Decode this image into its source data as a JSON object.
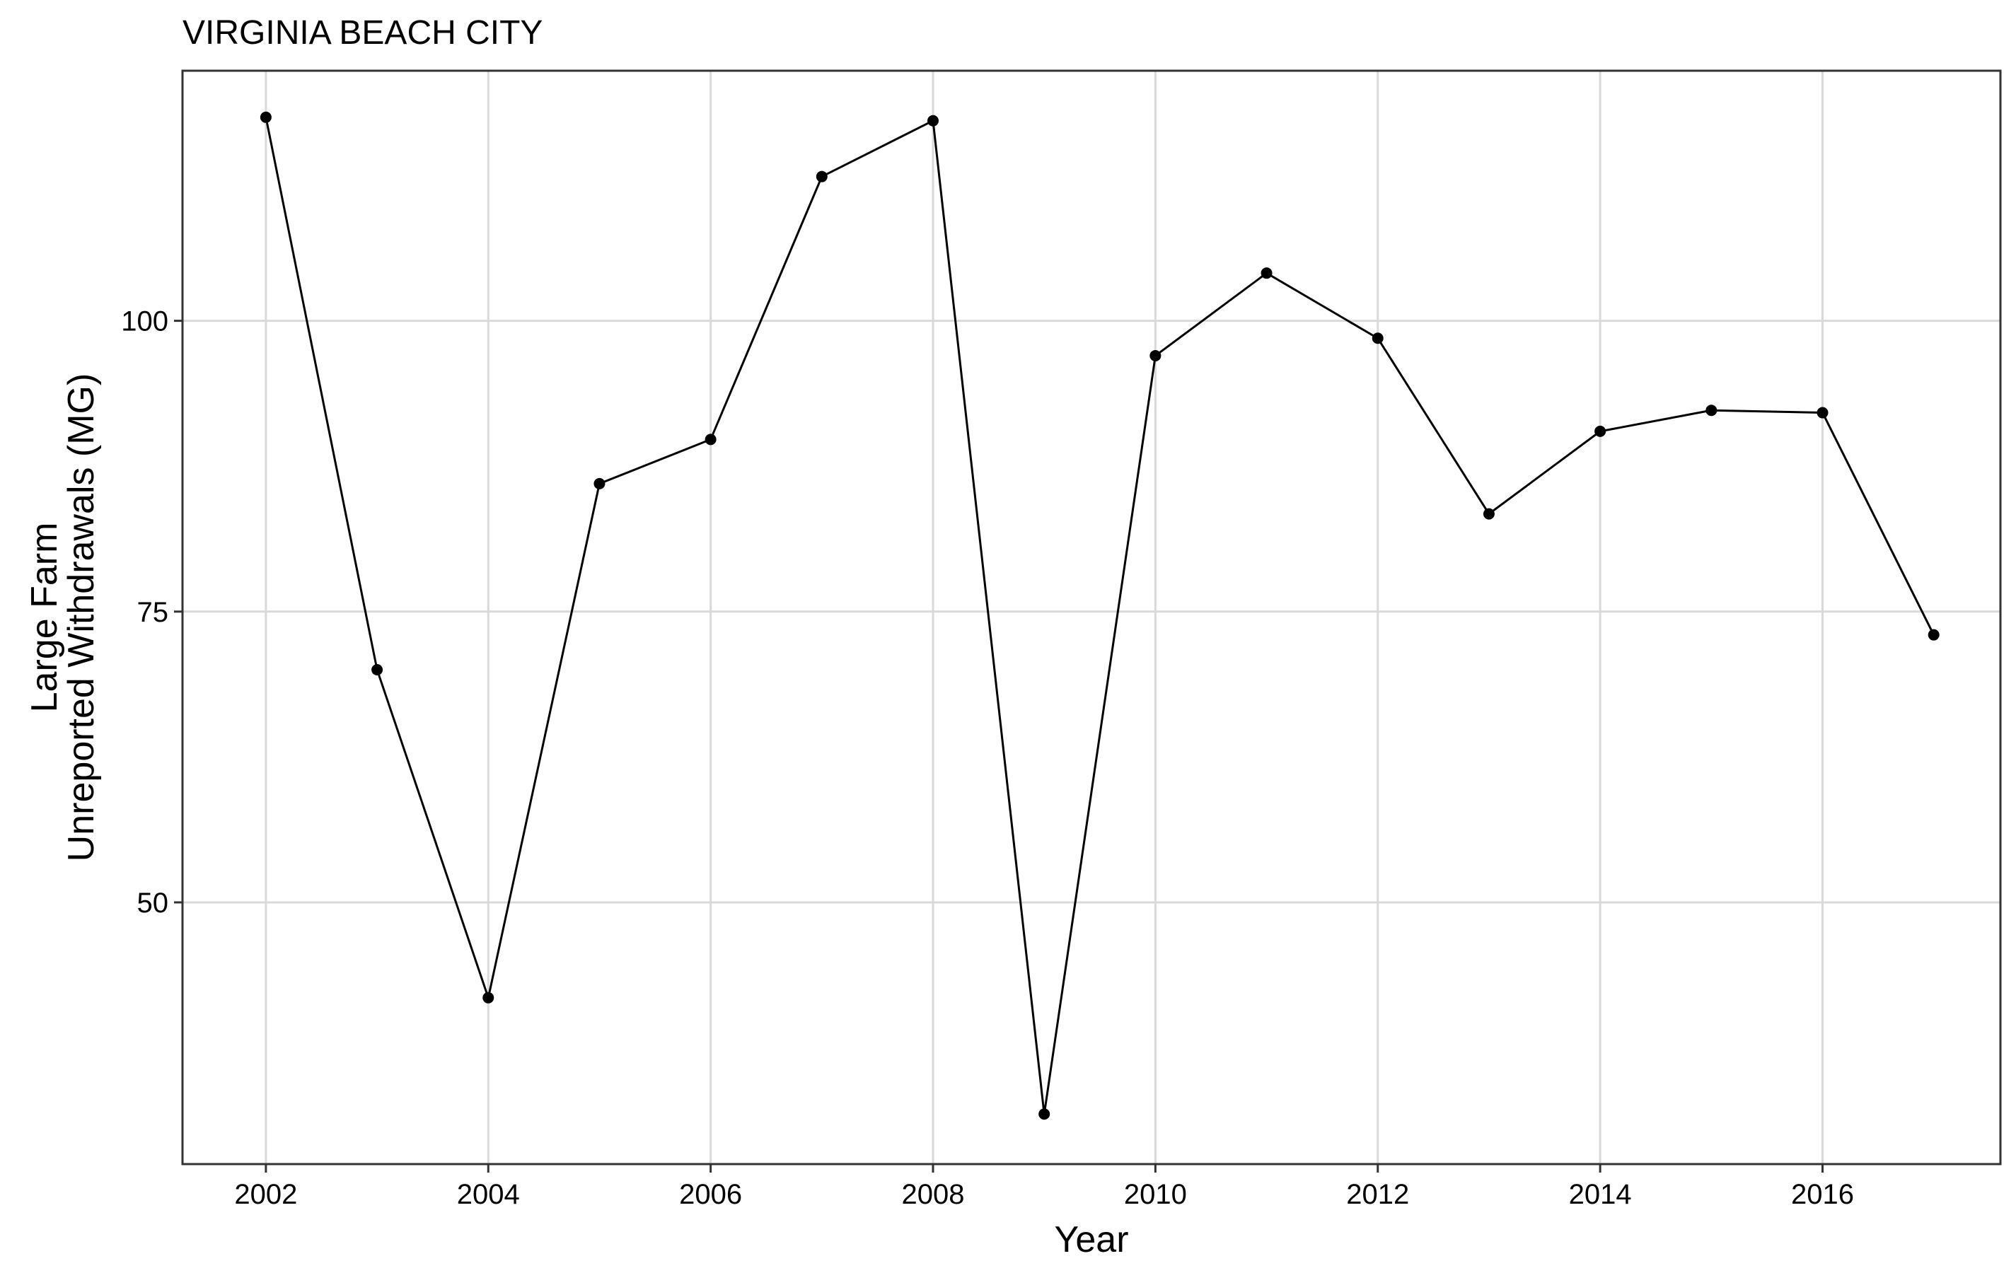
{
  "chart_data": {
    "type": "line",
    "title": "VIRGINIA BEACH CITY",
    "xlabel": "Year",
    "ylabel": [
      "Large Farm",
      "Unreported Withdrawals (MG)"
    ],
    "xlim": [
      2001.25,
      2017.6
    ],
    "ylim": [
      27.5,
      121.5
    ],
    "x_ticks": [
      2002,
      2004,
      2006,
      2008,
      2010,
      2012,
      2014,
      2016
    ],
    "y_ticks": [
      50,
      75,
      100
    ],
    "grid": true,
    "series": [
      {
        "color": "#000000",
        "points": [
          {
            "x": 2002.0,
            "y": 117.5
          },
          {
            "x": 2003.0,
            "y": 70.0
          },
          {
            "x": 2004.0,
            "y": 41.8
          },
          {
            "x": 2005.0,
            "y": 86.0
          },
          {
            "x": 2006.0,
            "y": 89.8
          },
          {
            "x": 2007.0,
            "y": 112.4
          },
          {
            "x": 2008.0,
            "y": 117.2
          },
          {
            "x": 2009.0,
            "y": 31.8
          },
          {
            "x": 2010.0,
            "y": 97.0
          },
          {
            "x": 2011.0,
            "y": 104.1
          },
          {
            "x": 2012.0,
            "y": 98.5
          },
          {
            "x": 2013.0,
            "y": 83.4
          },
          {
            "x": 2014.0,
            "y": 90.5
          },
          {
            "x": 2015.0,
            "y": 92.3
          },
          {
            "x": 2016.0,
            "y": 92.1
          },
          {
            "x": 2017.0,
            "y": 73.0
          }
        ]
      }
    ]
  }
}
